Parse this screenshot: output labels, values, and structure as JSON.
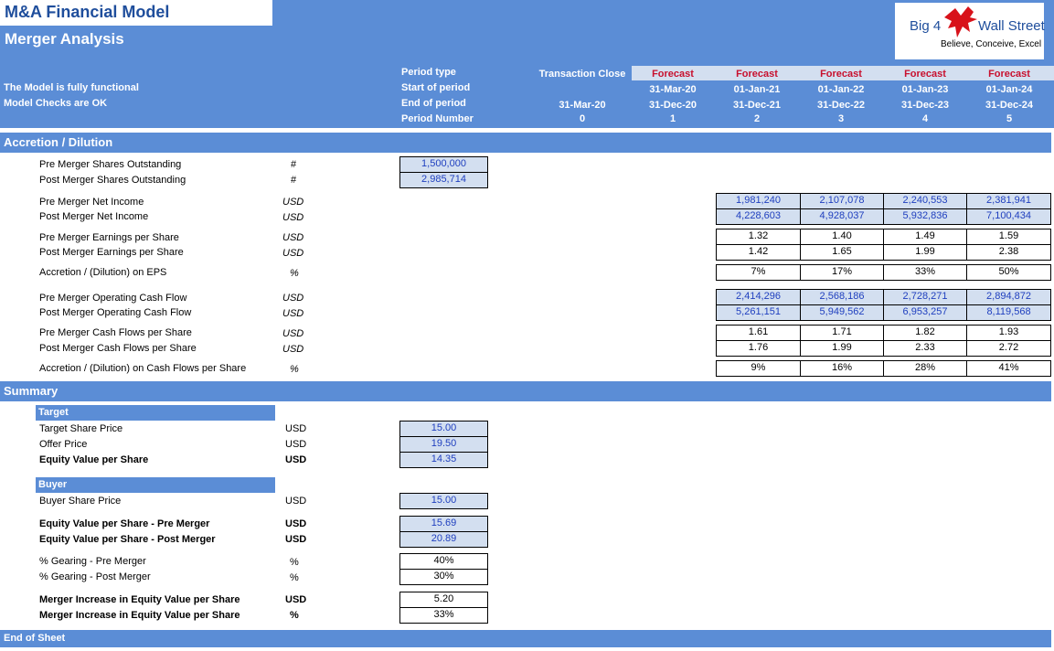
{
  "header": {
    "title": "M&A Financial Model",
    "subtitle": "Merger Analysis",
    "status1": "The Model is fully functional",
    "status2": "Model Checks are OK",
    "logo": {
      "text": "Big 4",
      "text2": "Wall Street",
      "tagline": "Believe, Conceive, Excel"
    },
    "row_labels": [
      "Period type",
      "Start of period",
      "End of period",
      "Period Number"
    ],
    "transaction_close": "Transaction Close",
    "close_end": "31-Mar-20",
    "close_num": "0",
    "periods": [
      {
        "type": "Forecast",
        "start": "31-Mar-20",
        "end": "31-Dec-20",
        "num": "1"
      },
      {
        "type": "Forecast",
        "start": "01-Jan-21",
        "end": "31-Dec-21",
        "num": "2"
      },
      {
        "type": "Forecast",
        "start": "01-Jan-22",
        "end": "31-Dec-22",
        "num": "3"
      },
      {
        "type": "Forecast",
        "start": "01-Jan-23",
        "end": "31-Dec-23",
        "num": "4"
      },
      {
        "type": "Forecast",
        "start": "01-Jan-24",
        "end": "31-Dec-24",
        "num": "5"
      }
    ]
  },
  "accretion": {
    "title": "Accretion / Dilution",
    "shares": [
      {
        "label": "Pre Merger Shares Outstanding",
        "unit": "#",
        "value": "1,500,000"
      },
      {
        "label": "Post Merger Shares Outstanding",
        "unit": "#",
        "value": "2,985,714"
      }
    ],
    "rows": [
      {
        "label": "Pre Merger Net Income",
        "unit": "USD",
        "values": [
          "1,981,240",
          "2,107,078",
          "2,240,553",
          "2,381,941"
        ]
      },
      {
        "label": "Post Merger Net Income",
        "unit": "USD",
        "values": [
          "4,228,603",
          "4,928,037",
          "5,932,836",
          "7,100,434"
        ]
      },
      {
        "label": "Pre Merger Earnings per Share",
        "unit": "USD",
        "values": [
          "1.32",
          "1.40",
          "1.49",
          "1.59"
        ]
      },
      {
        "label": "Post Merger Earnings per Share",
        "unit": "USD",
        "values": [
          "1.42",
          "1.65",
          "1.99",
          "2.38"
        ]
      },
      {
        "label": "Accretion / (Dilution) on EPS",
        "unit": "%",
        "values": [
          "7%",
          "17%",
          "33%",
          "50%"
        ]
      },
      {
        "label": "Pre Merger Operating Cash Flow",
        "unit": "USD",
        "values": [
          "2,414,296",
          "2,568,186",
          "2,728,271",
          "2,894,872"
        ]
      },
      {
        "label": "Post Merger Operating Cash Flow",
        "unit": "USD",
        "values": [
          "5,261,151",
          "5,949,562",
          "6,953,257",
          "8,119,568"
        ]
      },
      {
        "label": "Pre Merger Cash Flows per Share",
        "unit": "USD",
        "values": [
          "1.61",
          "1.71",
          "1.82",
          "1.93"
        ]
      },
      {
        "label": "Post Merger Cash Flows per Share",
        "unit": "USD",
        "values": [
          "1.76",
          "1.99",
          "2.33",
          "2.72"
        ]
      },
      {
        "label": "Accretion / (Dilution) on Cash Flows per Share",
        "unit": "%",
        "values": [
          "9%",
          "16%",
          "28%",
          "41%"
        ]
      }
    ]
  },
  "summary": {
    "title": "Summary",
    "target_header": "Target",
    "target": [
      {
        "label": "Target Share Price",
        "unit": "USD",
        "value": "15.00"
      },
      {
        "label": "Offer Price",
        "unit": "USD",
        "value": "19.50"
      },
      {
        "label": "Equity Value per Share",
        "unit": "USD",
        "value": "14.35"
      }
    ],
    "buyer_header": "Buyer",
    "buyer": [
      {
        "label": "Buyer Share Price",
        "unit": "USD",
        "value": "15.00"
      },
      {
        "label": "Equity Value per Share - Pre Merger",
        "unit": "USD",
        "value": "15.69"
      },
      {
        "label": "Equity Value per Share - Post Merger",
        "unit": "USD",
        "value": "20.89"
      },
      {
        "label": "% Gearing - Pre Merger",
        "unit": "%",
        "value": "40%"
      },
      {
        "label": "% Gearing - Post Merger",
        "unit": "%",
        "value": "30%"
      },
      {
        "label": "Merger Increase in Equity Value per Share",
        "unit": "USD",
        "value": "5.20"
      },
      {
        "label": "Merger Increase in Equity Value per Share",
        "unit": "%",
        "value": "33%"
      }
    ]
  },
  "footer": "End of Sheet",
  "colors": {
    "band": "#5b8dd6",
    "input_fill": "#d3dff0",
    "input_text": "#1f3fbf",
    "forecast": "#c8102e",
    "title": "#1f4e9c"
  }
}
